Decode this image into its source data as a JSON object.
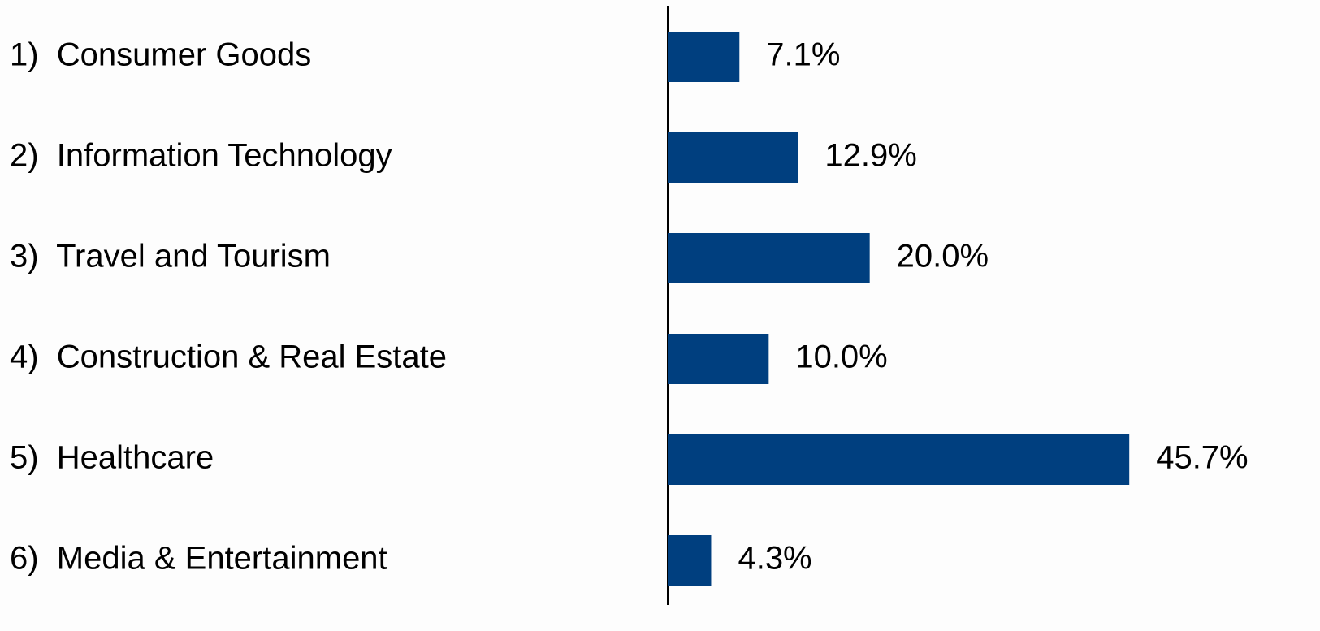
{
  "chart_data": {
    "type": "barh",
    "categories": [
      "1)  Consumer Goods",
      "2)  Information Technology",
      "3)  Travel and Tourism",
      "4)  Construction & Real Estate",
      "5)  Healthcare",
      "6)  Media & Entertainment"
    ],
    "values": [
      7.1,
      12.9,
      20.0,
      10.0,
      45.7,
      4.3
    ],
    "value_labels": [
      "7.1%",
      "12.9%",
      "20.0%",
      "10.0%",
      "45.7%",
      "4.3%"
    ],
    "color": "#003f7f",
    "xlim": [
      0,
      60
    ]
  }
}
